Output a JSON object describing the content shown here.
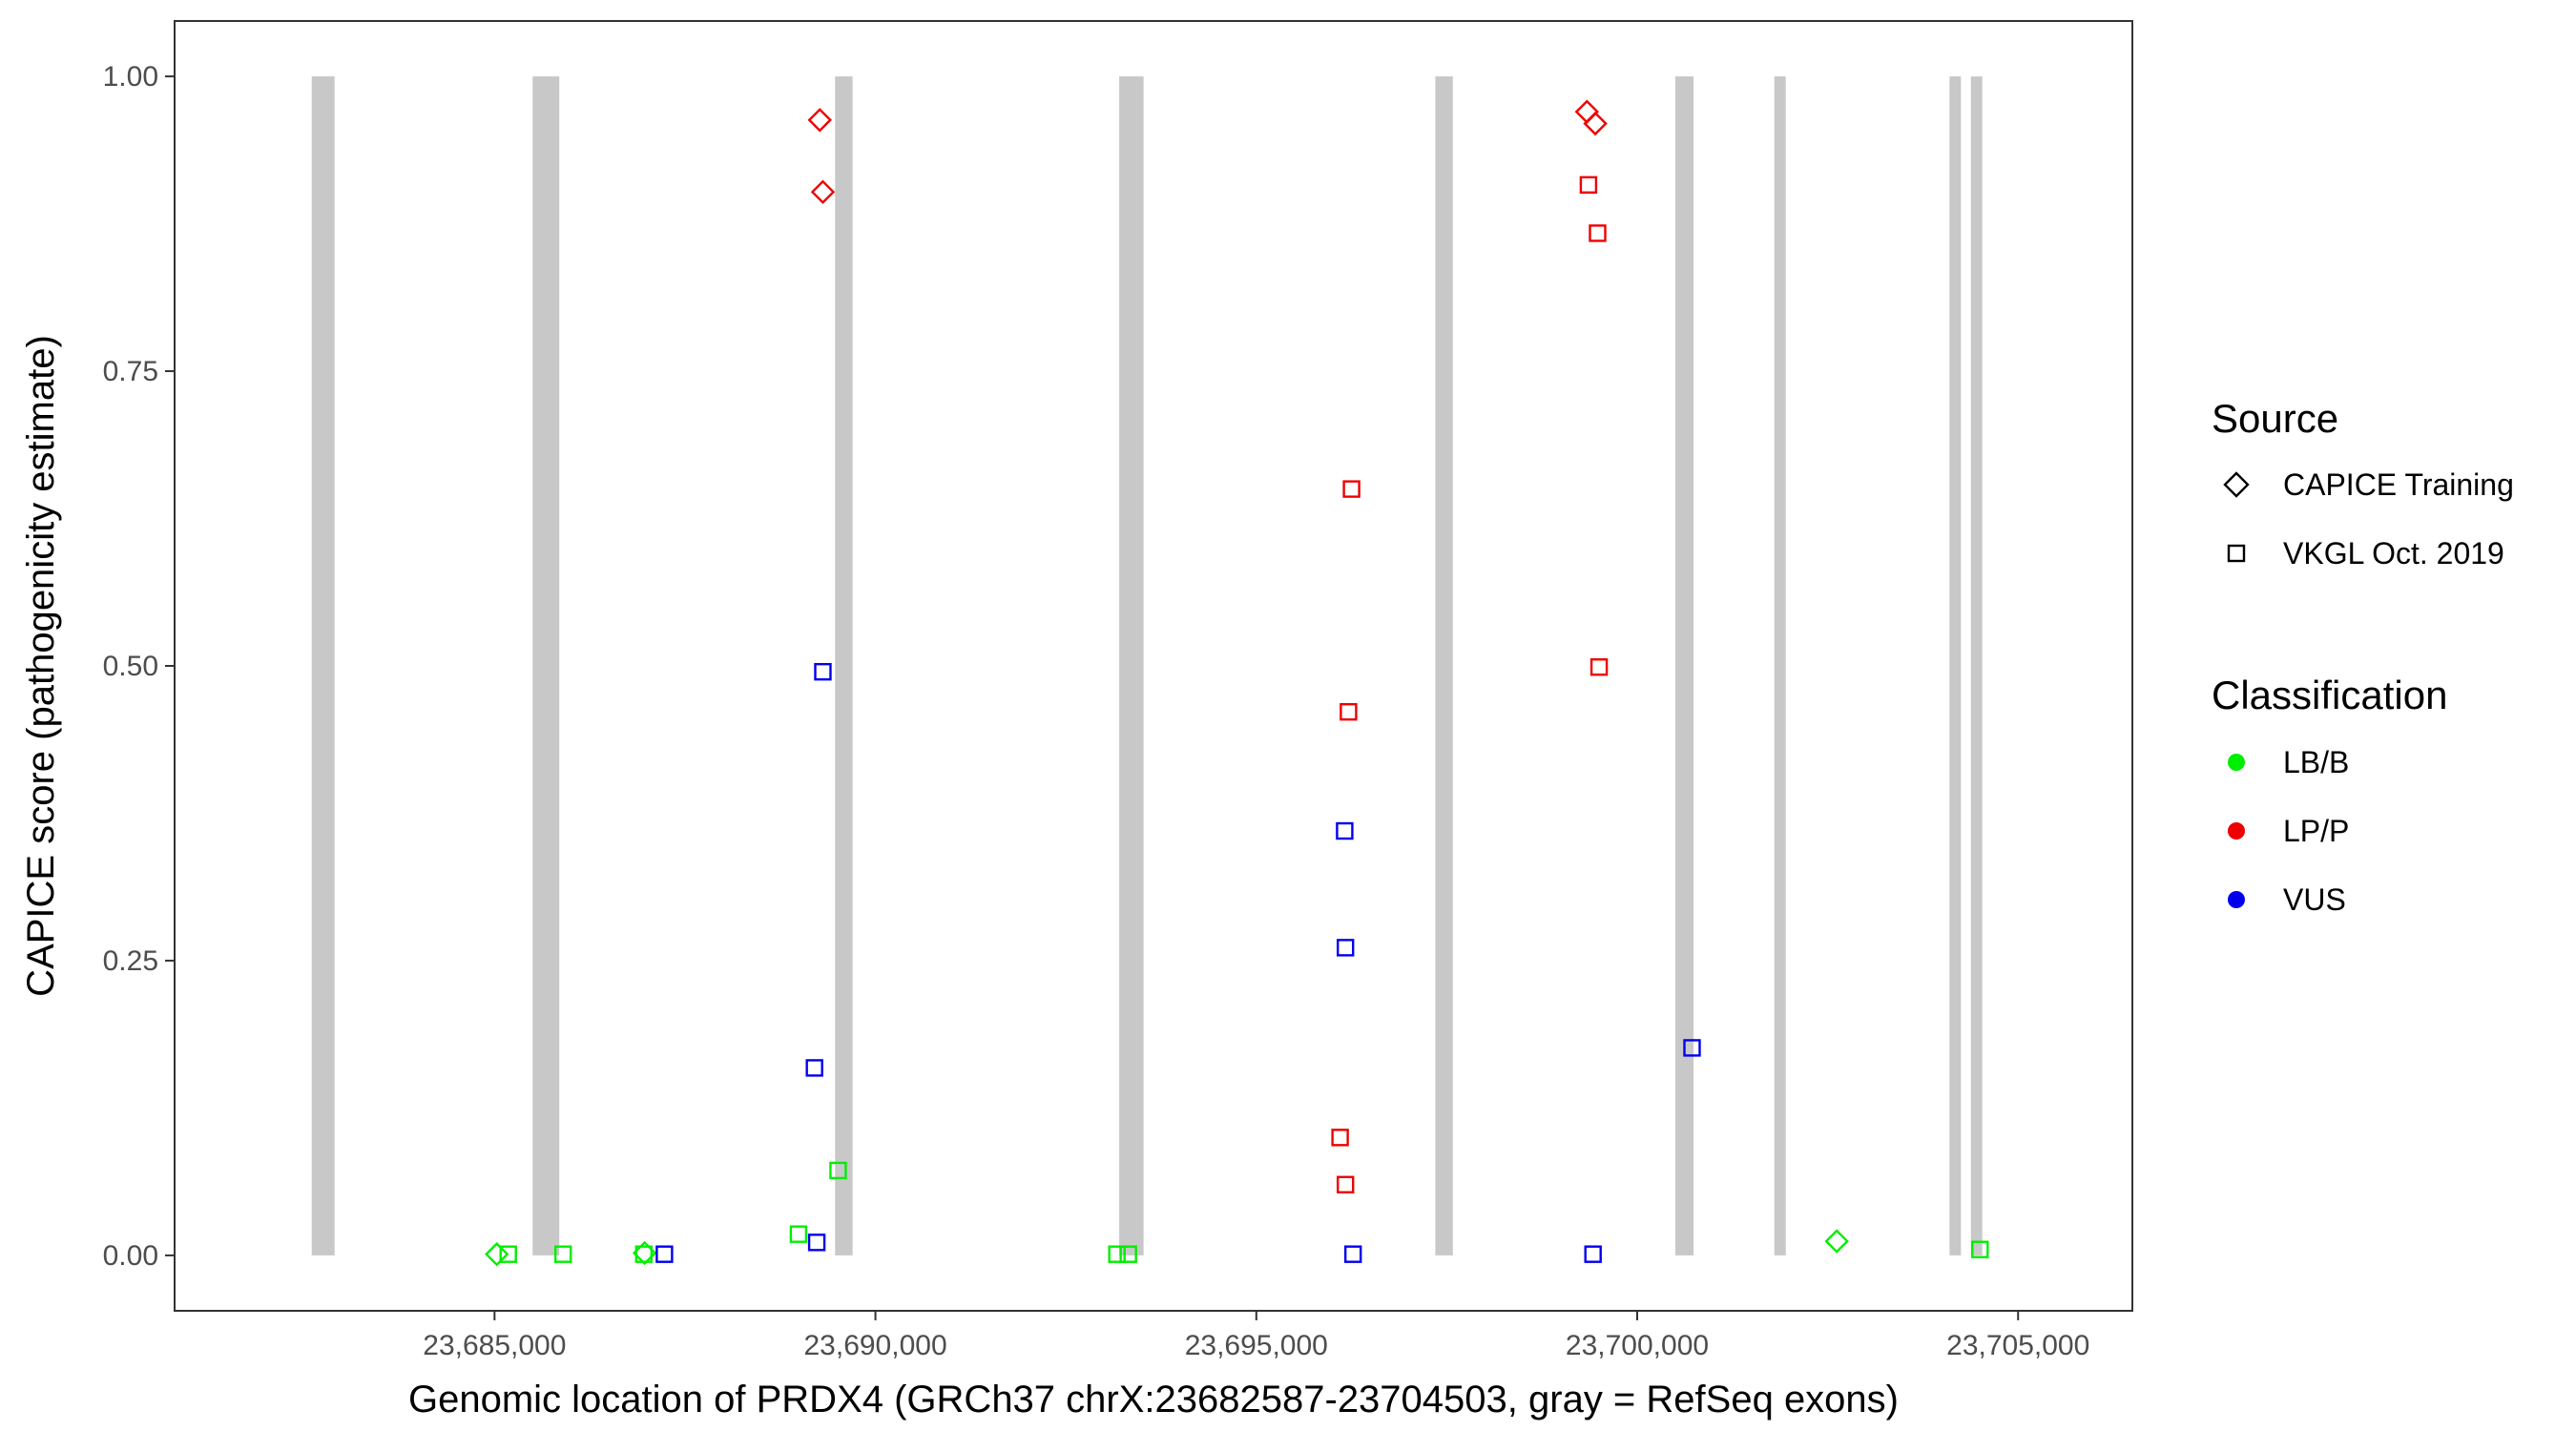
{
  "chart_data": {
    "type": "scatter",
    "title": "",
    "xlabel": "Genomic location of PRDX4 (GRCh37 chrX:23682587-23704503, gray = RefSeq exons)",
    "ylabel": "CAPICE score (pathogenicity estimate)",
    "xlim": [
      23680800,
      23706500
    ],
    "ylim": [
      -0.047,
      1.047
    ],
    "x_ticks": [
      23685000,
      23690000,
      23695000,
      23700000,
      23705000
    ],
    "x_tick_labels": [
      "23,685,000",
      "23,690,000",
      "23,695,000",
      "23,700,000",
      "23,705,000"
    ],
    "y_ticks": [
      0,
      0.25,
      0.5,
      0.75,
      1.0
    ],
    "y_tick_labels": [
      "0.00",
      "0.25",
      "0.50",
      "0.75",
      "1.00"
    ],
    "grid": false,
    "exons": [
      [
        23682600,
        23682900
      ],
      [
        23685500,
        23685850
      ],
      [
        23689470,
        23689700
      ],
      [
        23693200,
        23693520
      ],
      [
        23697350,
        23697580
      ],
      [
        23700500,
        23700740
      ],
      [
        23701800,
        23701950
      ],
      [
        23704100,
        23704250
      ],
      [
        23704380,
        23704530
      ]
    ],
    "exon_color": "#c8c8c8",
    "legend": {
      "position": "right",
      "source_title": "Source",
      "source_entries": [
        {
          "label": "CAPICE Training",
          "shape": "diamond"
        },
        {
          "label": "VKGL Oct. 2019",
          "shape": "square"
        }
      ],
      "class_title": "Classification",
      "class_entries": [
        {
          "label": "LB/B",
          "color": "#00ee00"
        },
        {
          "label": "LP/P",
          "color": "#ee0000"
        },
        {
          "label": "VUS",
          "color": "#0000ee"
        }
      ]
    },
    "colors": {
      "LB/B": "#00ee00",
      "LP/P": "#ee0000",
      "VUS": "#0000ee"
    },
    "points": [
      {
        "x": 23685030,
        "y": 0.001,
        "shape": "diamond",
        "cls": "LB/B"
      },
      {
        "x": 23685180,
        "y": 0.001,
        "shape": "square",
        "cls": "LB/B"
      },
      {
        "x": 23685900,
        "y": 0.001,
        "shape": "square",
        "cls": "LB/B"
      },
      {
        "x": 23686970,
        "y": 0.002,
        "shape": "diamond",
        "cls": "LB/B"
      },
      {
        "x": 23686960,
        "y": 0.001,
        "shape": "square",
        "cls": "LB/B"
      },
      {
        "x": 23687230,
        "y": 0.001,
        "shape": "square",
        "cls": "VUS"
      },
      {
        "x": 23688990,
        "y": 0.018,
        "shape": "square",
        "cls": "LB/B"
      },
      {
        "x": 23689200,
        "y": 0.159,
        "shape": "square",
        "cls": "VUS"
      },
      {
        "x": 23689230,
        "y": 0.011,
        "shape": "square",
        "cls": "VUS"
      },
      {
        "x": 23689270,
        "y": 0.963,
        "shape": "diamond",
        "cls": "LP/P"
      },
      {
        "x": 23689310,
        "y": 0.902,
        "shape": "diamond",
        "cls": "LP/P"
      },
      {
        "x": 23689310,
        "y": 0.495,
        "shape": "square",
        "cls": "VUS"
      },
      {
        "x": 23689510,
        "y": 0.072,
        "shape": "square",
        "cls": "LB/B"
      },
      {
        "x": 23693170,
        "y": 0.001,
        "shape": "square",
        "cls": "LB/B"
      },
      {
        "x": 23693320,
        "y": 0.001,
        "shape": "square",
        "cls": "LB/B"
      },
      {
        "x": 23696100,
        "y": 0.1,
        "shape": "square",
        "cls": "LP/P"
      },
      {
        "x": 23696160,
        "y": 0.36,
        "shape": "square",
        "cls": "VUS"
      },
      {
        "x": 23696170,
        "y": 0.261,
        "shape": "square",
        "cls": "VUS"
      },
      {
        "x": 23696170,
        "y": 0.06,
        "shape": "square",
        "cls": "LP/P"
      },
      {
        "x": 23696210,
        "y": 0.461,
        "shape": "square",
        "cls": "LP/P"
      },
      {
        "x": 23696250,
        "y": 0.65,
        "shape": "square",
        "cls": "LP/P"
      },
      {
        "x": 23696270,
        "y": 0.001,
        "shape": "square",
        "cls": "VUS"
      },
      {
        "x": 23699340,
        "y": 0.97,
        "shape": "diamond",
        "cls": "LP/P"
      },
      {
        "x": 23699360,
        "y": 0.908,
        "shape": "square",
        "cls": "LP/P"
      },
      {
        "x": 23699420,
        "y": 0.001,
        "shape": "square",
        "cls": "VUS"
      },
      {
        "x": 23699450,
        "y": 0.96,
        "shape": "diamond",
        "cls": "LP/P"
      },
      {
        "x": 23699480,
        "y": 0.867,
        "shape": "square",
        "cls": "LP/P"
      },
      {
        "x": 23699500,
        "y": 0.499,
        "shape": "square",
        "cls": "LP/P"
      },
      {
        "x": 23700720,
        "y": 0.176,
        "shape": "square",
        "cls": "VUS"
      },
      {
        "x": 23702620,
        "y": 0.012,
        "shape": "diamond",
        "cls": "LB/B"
      },
      {
        "x": 23704500,
        "y": 0.005,
        "shape": "square",
        "cls": "LB/B"
      }
    ]
  }
}
